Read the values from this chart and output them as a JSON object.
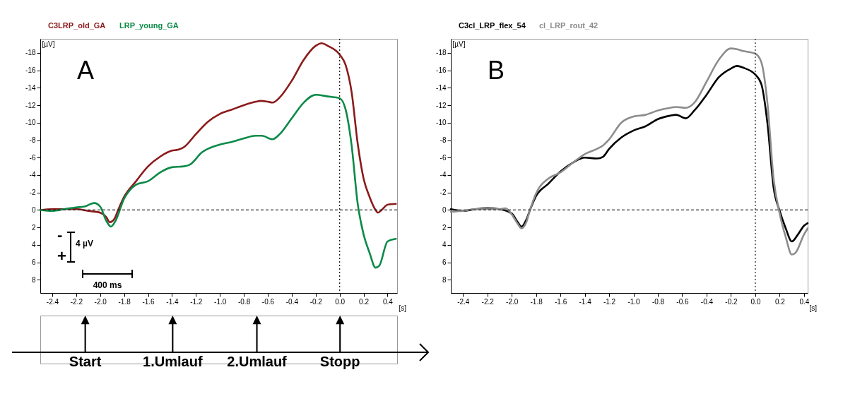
{
  "chart_data": [
    {
      "type": "line",
      "title": "A",
      "xlabel": "[s]",
      "ylabel": "[µV]",
      "legend": "top left",
      "grid": false,
      "xlim": [
        -2.5,
        0.48
      ],
      "ylim": [
        9.5,
        -19.6
      ],
      "xticks": [
        -2.4,
        -2.2,
        {
          "value": -2.0,
          "label": "-2.0"
        },
        -1.8,
        -1.6,
        -1.4,
        -1.2,
        {
          "value": -1.0,
          "label": "-1.0"
        },
        -0.8,
        -0.6,
        -0.4,
        -0.2,
        {
          "value": 0,
          "label": "0.0"
        },
        0.2,
        0.4
      ],
      "yticks": [
        -18,
        -16,
        -14,
        -12,
        -10,
        -8,
        -6,
        -4,
        -2,
        0,
        2,
        4,
        6,
        8
      ],
      "ref_lines": [
        {
          "axis": "y",
          "value": 0,
          "line_style": "dashed"
        },
        {
          "axis": "x",
          "value": 0,
          "line_style": "dotted"
        }
      ],
      "annotations": [
        "-",
        "+",
        "4 µV",
        "400 ms",
        "Start",
        "1.Umlauf",
        "2.Umlauf",
        "Stopp"
      ],
      "series": [
        {
          "name": "C3LRP_old_GA",
          "color": "#8b1a1a",
          "x": [
            -2.5,
            -2.4,
            -2.2,
            -2.1,
            -2.0,
            -1.95,
            -1.92,
            -1.88,
            -1.85,
            -1.8,
            -1.7,
            -1.6,
            -1.5,
            -1.4,
            -1.35,
            -1.3,
            -1.2,
            -1.1,
            -1.0,
            -0.9,
            -0.8,
            -0.7,
            -0.66,
            -0.6,
            -0.56,
            -0.5,
            -0.4,
            -0.3,
            -0.2,
            -0.15,
            -0.1,
            0.0,
            0.05,
            0.1,
            0.15,
            0.2,
            0.25,
            0.3,
            0.32,
            0.35,
            0.4,
            0.47
          ],
          "values": [
            0,
            -0.1,
            -0.1,
            0.1,
            0.3,
            0.8,
            1.4,
            1.0,
            0,
            -1.5,
            -3.3,
            -5.0,
            -6.1,
            -6.8,
            -6.9,
            -7.2,
            -8.7,
            -10.1,
            -11.0,
            -11.5,
            -12.0,
            -12.4,
            -12.5,
            -12.4,
            -12.3,
            -12.9,
            -14.8,
            -17.2,
            -18.8,
            -19.1,
            -18.8,
            -17.8,
            -16.6,
            -13.5,
            -7.7,
            -3.6,
            -1.5,
            0,
            0.3,
            0,
            -0.6,
            -0.7
          ]
        },
        {
          "name": "LRP_young_GA",
          "color": "#0b8a48",
          "x": [
            -2.5,
            -2.4,
            -2.3,
            -2.2,
            -2.13,
            -2.05,
            -2.0,
            -1.95,
            -1.91,
            -1.87,
            -1.8,
            -1.75,
            -1.7,
            -1.6,
            -1.5,
            -1.4,
            -1.3,
            -1.25,
            -1.15,
            -1.0,
            -0.9,
            -0.8,
            -0.7,
            -0.65,
            -0.56,
            -0.5,
            -0.4,
            -0.3,
            -0.2,
            -0.1,
            0.0,
            0.05,
            0.1,
            0.15,
            0.2,
            0.25,
            0.3,
            0.33,
            0.4,
            0.47
          ],
          "values": [
            0,
            0.1,
            -0.1,
            -0.3,
            -0.4,
            -0.8,
            -0.4,
            1.2,
            1.9,
            1.2,
            -1.3,
            -2.3,
            -2.9,
            -3.3,
            -4.3,
            -4.9,
            -5.0,
            -5.2,
            -6.6,
            -7.5,
            -7.8,
            -8.2,
            -8.5,
            -8.5,
            -8.1,
            -8.7,
            -10.5,
            -12.3,
            -13.2,
            -13.0,
            -12.8,
            -11.5,
            -7.4,
            -0.8,
            2.8,
            4.9,
            6.6,
            6.4,
            3.6,
            3.3
          ]
        }
      ]
    },
    {
      "type": "line",
      "title": "B",
      "xlabel": "[s]",
      "ylabel": "[µV]",
      "legend": "top left",
      "grid": false,
      "xlim": [
        -2.5,
        0.43
      ],
      "ylim": [
        9.5,
        -19.6
      ],
      "xticks": [
        -2.4,
        -2.2,
        {
          "value": -2.0,
          "label": "-2.0"
        },
        -1.8,
        -1.6,
        -1.4,
        -1.2,
        {
          "value": -1.0,
          "label": "-1.0"
        },
        -0.8,
        -0.6,
        -0.4,
        -0.2,
        {
          "value": 0,
          "label": "0.0"
        },
        0.2,
        0.4
      ],
      "yticks": [
        -18,
        -16,
        -14,
        -12,
        -10,
        -8,
        -6,
        -4,
        -2,
        0,
        2,
        4,
        6,
        8
      ],
      "ref_lines": [
        {
          "axis": "y",
          "value": 0,
          "line_style": "dashed"
        },
        {
          "axis": "x",
          "value": 0,
          "line_style": "dotted"
        }
      ],
      "series": [
        {
          "name": "C3cl_LRP_flex_54",
          "color": "#000000",
          "x": [
            -2.5,
            -2.4,
            -2.3,
            -2.2,
            -2.1,
            -2.0,
            -1.95,
            -1.92,
            -1.88,
            -1.85,
            -1.8,
            -1.7,
            -1.6,
            -1.5,
            -1.4,
            -1.3,
            -1.25,
            -1.2,
            -1.1,
            -1.0,
            -0.9,
            -0.8,
            -0.7,
            -0.65,
            -0.57,
            -0.5,
            -0.4,
            -0.3,
            -0.2,
            -0.15,
            -0.1,
            0.0,
            0.05,
            0.1,
            0.15,
            0.2,
            0.25,
            0.3,
            0.35,
            0.4,
            0.43
          ],
          "values": [
            -0.1,
            0.1,
            -0.1,
            -0.2,
            -0.1,
            0.4,
            1.4,
            1.9,
            1.1,
            0,
            -1.6,
            -3.0,
            -4.4,
            -5.4,
            -6.0,
            -5.9,
            -6.1,
            -7.0,
            -8.3,
            -9.1,
            -9.6,
            -10.4,
            -10.8,
            -10.9,
            -10.5,
            -11.4,
            -13.2,
            -15.2,
            -16.2,
            -16.5,
            -16.3,
            -15.5,
            -14.4,
            -9.9,
            -2.6,
            0.1,
            2.1,
            3.6,
            2.8,
            1.8,
            1.5
          ]
        },
        {
          "name": "cl_LRP_rout_42",
          "color": "#8c8c8c",
          "x": [
            -2.5,
            -2.4,
            -2.3,
            -2.2,
            -2.1,
            -2.05,
            -2.0,
            -1.95,
            -1.92,
            -1.88,
            -1.85,
            -1.8,
            -1.7,
            -1.6,
            -1.5,
            -1.4,
            -1.3,
            -1.25,
            -1.2,
            -1.1,
            -1.0,
            -0.9,
            -0.8,
            -0.7,
            -0.65,
            -0.57,
            -0.5,
            -0.4,
            -0.3,
            -0.2,
            -0.15,
            -0.1,
            0.0,
            0.05,
            0.1,
            0.15,
            0.2,
            0.25,
            0.3,
            0.33,
            0.4,
            0.43
          ],
          "values": [
            0.2,
            0.1,
            -0.1,
            -0.1,
            -0.1,
            -0.2,
            0.5,
            1.6,
            2.1,
            1.4,
            0,
            -1.9,
            -3.6,
            -4.3,
            -5.4,
            -6.4,
            -7.0,
            -7.4,
            -8.1,
            -10.0,
            -10.7,
            -10.9,
            -11.4,
            -11.7,
            -11.8,
            -11.7,
            -12.3,
            -14.7,
            -17.2,
            -18.5,
            -18.4,
            -18.2,
            -17.9,
            -16.9,
            -12.2,
            -3.6,
            0.4,
            3.1,
            5.1,
            4.9,
            2.8,
            2.1
          ]
        }
      ]
    }
  ]
}
